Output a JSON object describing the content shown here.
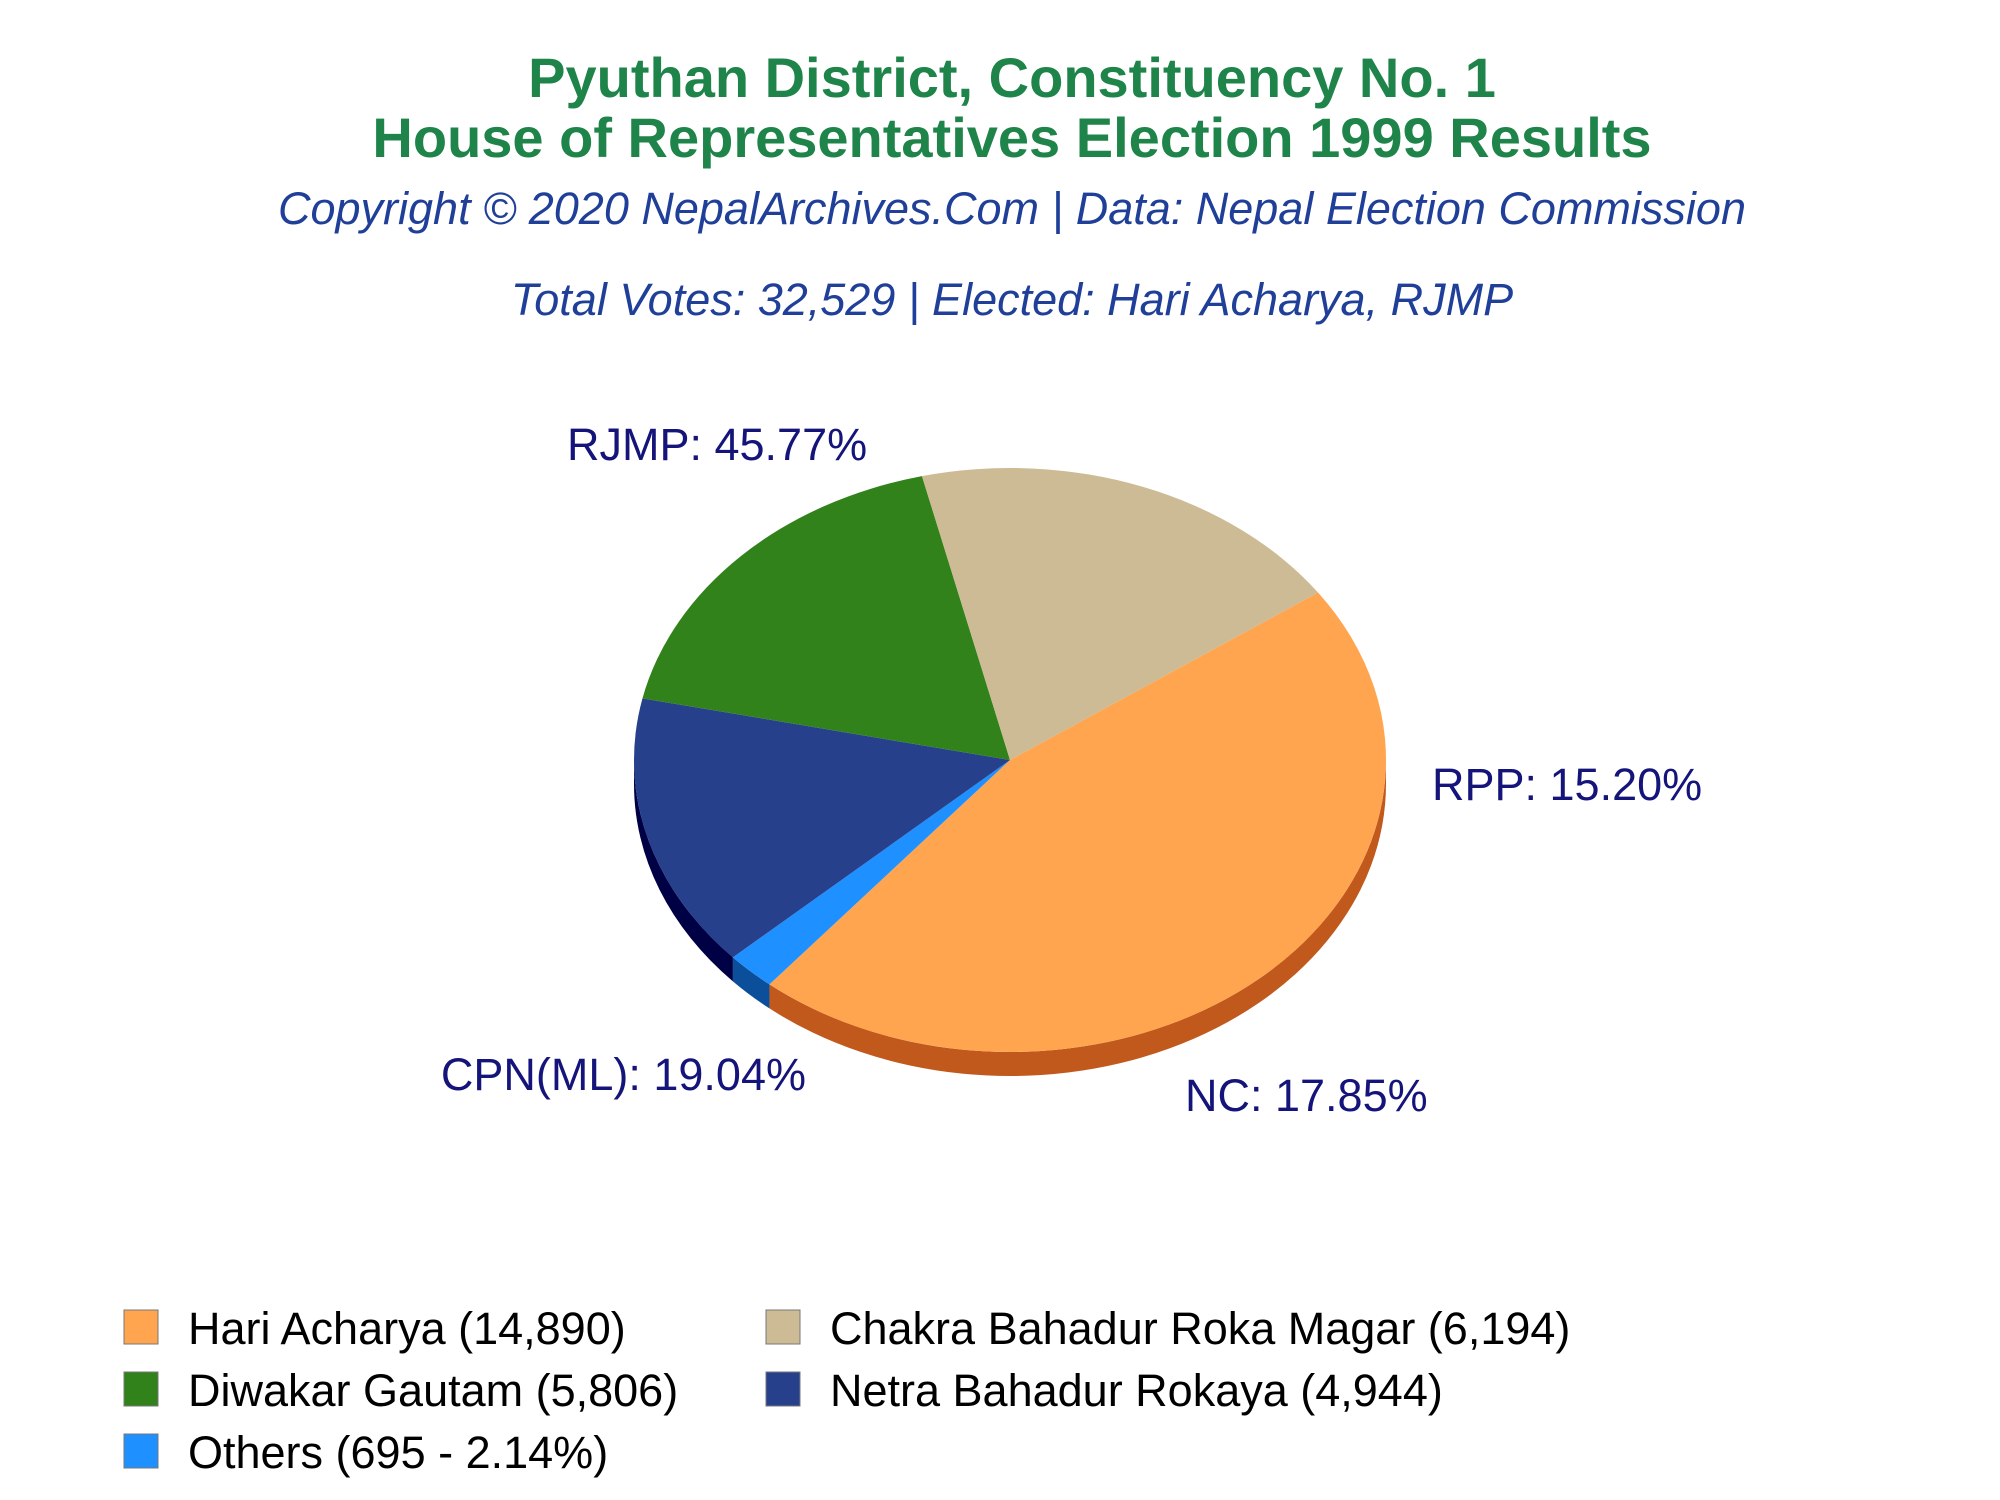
{
  "chart_data": {
    "type": "pie",
    "title": "Pyuthan District, Constituency No. 1",
    "subtitle": "House of Representatives Election 1999 Results",
    "copyright": "Copyright © 2020 NepalArchives.Com | Data: Nepal Election Commission",
    "summary": "Total Votes: 32,529 | Elected: Hari Acharya, RJMP",
    "slices": [
      {
        "label": "RJMP: 45.77%",
        "value": 45.77,
        "votes": 14890,
        "color": "#ffa54f",
        "side": "#c1591d"
      },
      {
        "label": "Others",
        "value": 2.14,
        "votes": 695,
        "color": "#1e90ff",
        "side": "#0b4f9a"
      },
      {
        "label": "RPP: 15.20%",
        "value": 15.2,
        "votes": 4944,
        "color": "#27408b",
        "side": "#000045"
      },
      {
        "label": "NC: 17.85%",
        "value": 17.85,
        "votes": 5806,
        "color": "#31821a",
        "side": "#052a05"
      },
      {
        "label": "CPN(ML): 19.04%",
        "value": 19.04,
        "votes": 6194,
        "color": "#cdbb95",
        "side": "#766444"
      }
    ],
    "legend": [
      {
        "label": "Hari Acharya (14,890)",
        "color": "#ffa54f"
      },
      {
        "label": "Chakra Bahadur Roka Magar (6,194)",
        "color": "#cdbb95"
      },
      {
        "label": "Diwakar Gautam (5,806)",
        "color": "#31821a"
      },
      {
        "label": "Netra Bahadur Rokaya (4,944)",
        "color": "#27408b"
      },
      {
        "label": "Others (695 - 2.14%)",
        "color": "#1e90ff"
      }
    ]
  }
}
